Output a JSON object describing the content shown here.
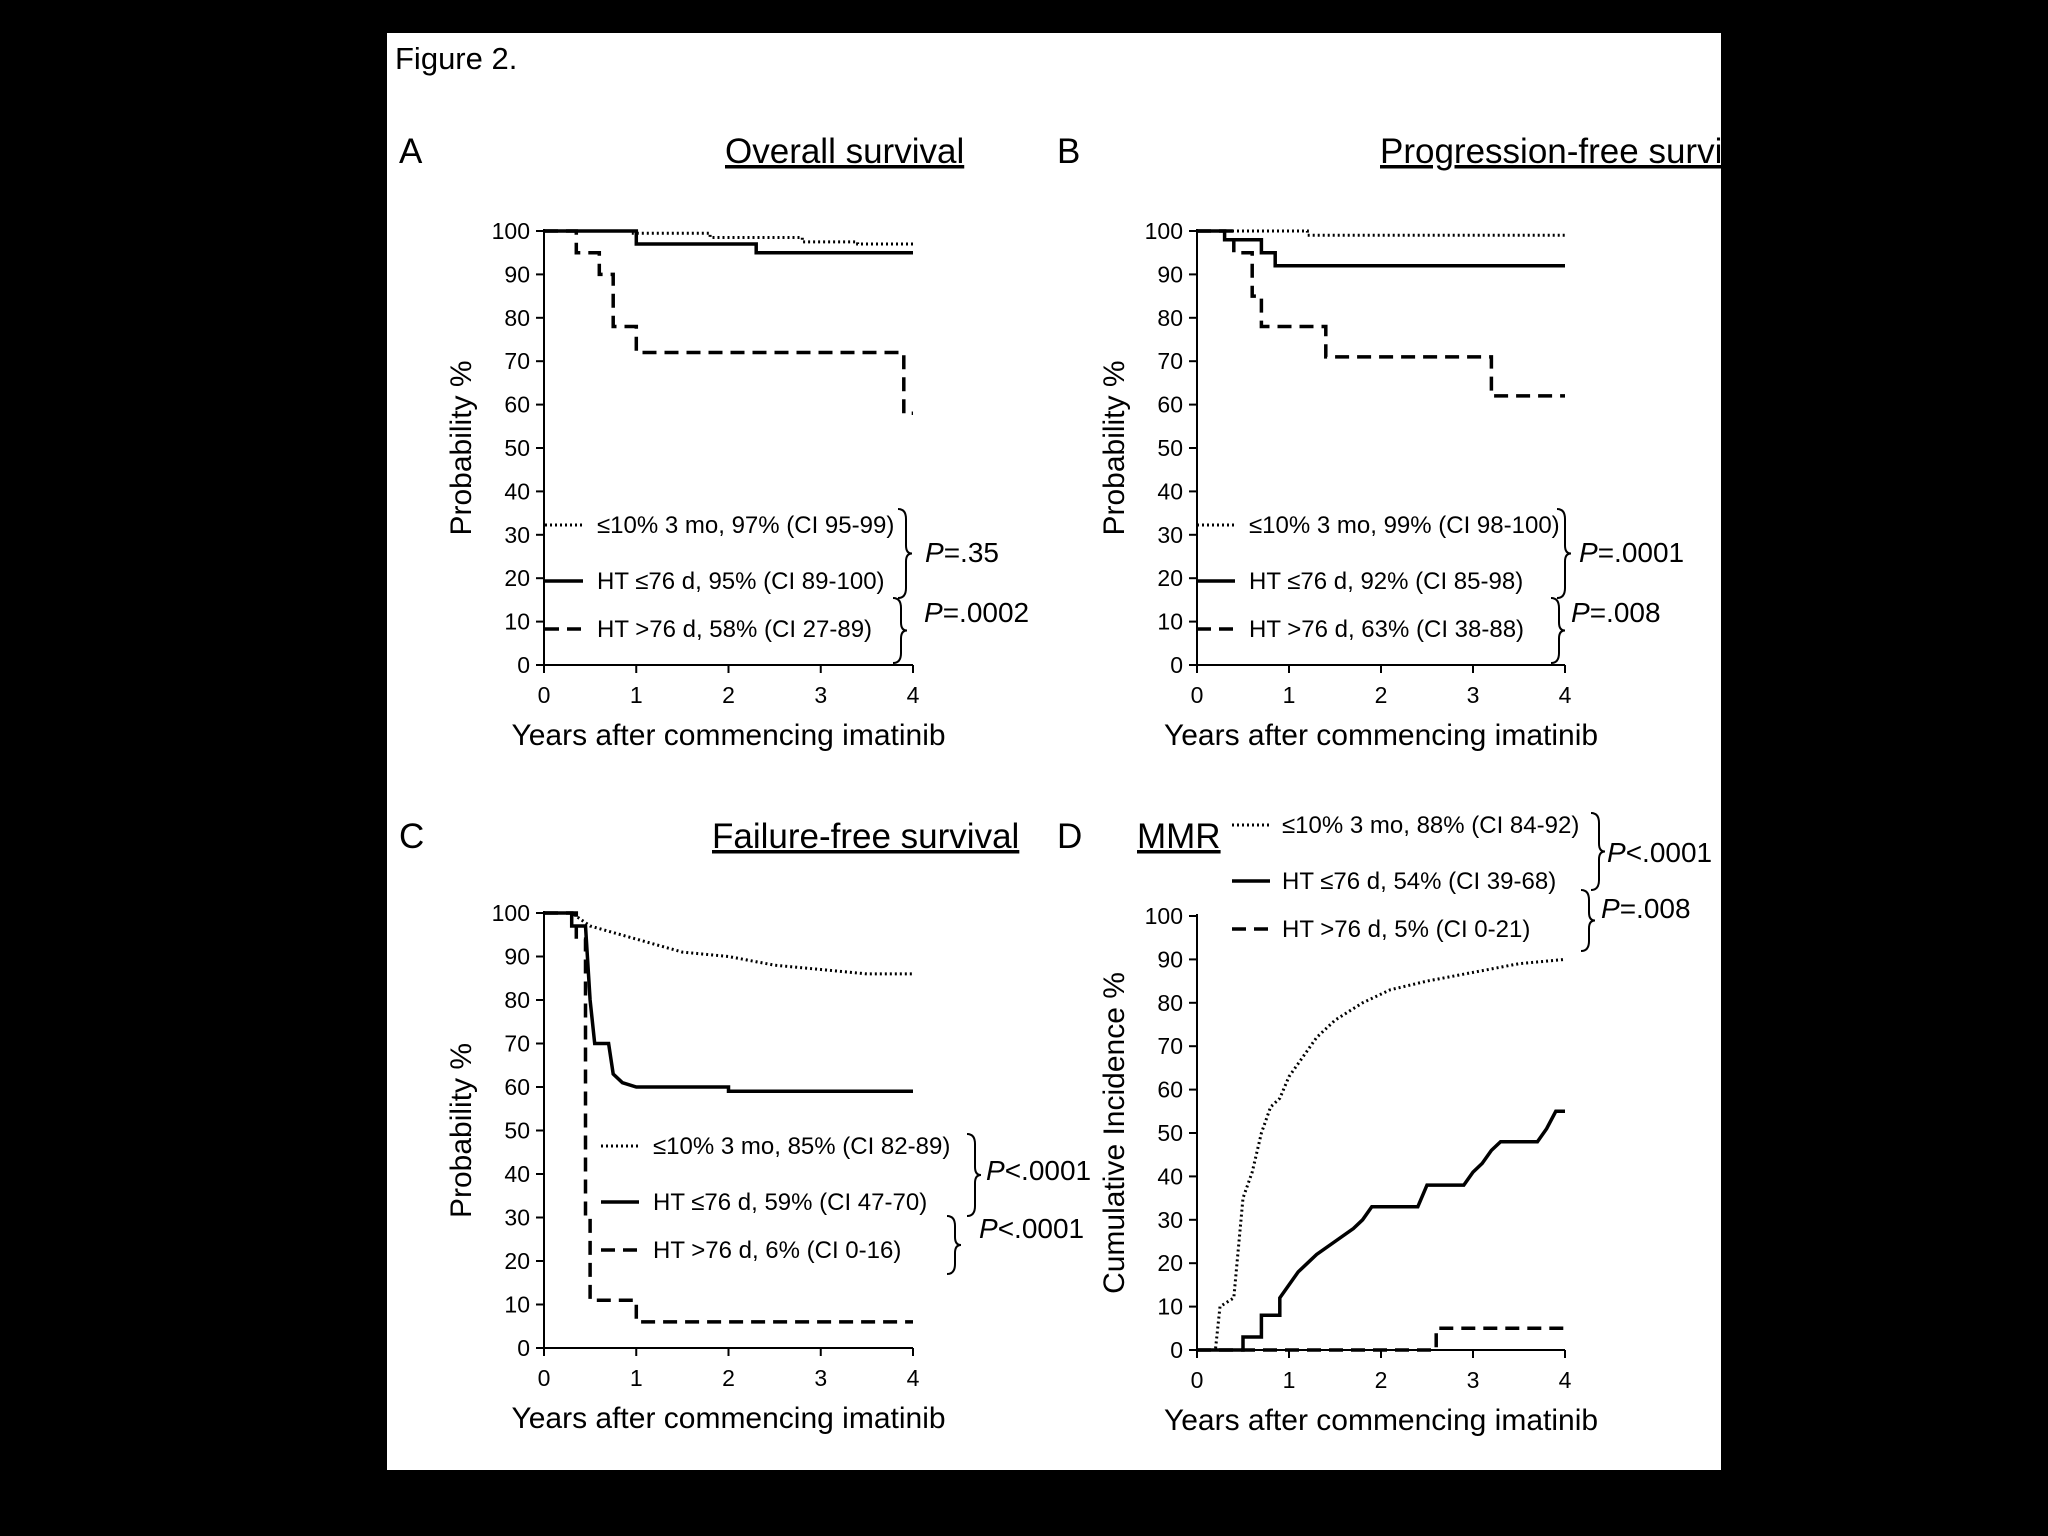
{
  "figure_title": "Figure 2.",
  "chart_data": [
    {
      "panel": "A",
      "type": "line",
      "title": "Overall survival",
      "xlabel": "Years after commencing imatinib",
      "ylabel": "Probability %",
      "xlim": [
        0,
        4
      ],
      "ylim": [
        0,
        100
      ],
      "xticks": [
        "0",
        "1",
        "2",
        "3",
        "4"
      ],
      "yticks": [
        "0",
        "10",
        "20",
        "30",
        "40",
        "50",
        "60",
        "70",
        "80",
        "90",
        "100"
      ],
      "series": [
        {
          "name": "≤10% 3 mo, 97% (CI 95-99)",
          "style": "dotted",
          "points": [
            [
              0,
              100
            ],
            [
              0.95,
              100
            ],
            [
              0.95,
              99.5
            ],
            [
              1.8,
              99.5
            ],
            [
              1.8,
              98.5
            ],
            [
              2.8,
              98.5
            ],
            [
              2.8,
              97.5
            ],
            [
              3.4,
              97.5
            ],
            [
              3.4,
              97
            ],
            [
              4,
              97
            ]
          ]
        },
        {
          "name": "HT ≤76 d, 95% (CI 89-100)",
          "style": "solid",
          "points": [
            [
              0,
              100
            ],
            [
              1.0,
              100
            ],
            [
              1.0,
              97
            ],
            [
              2.3,
              97
            ],
            [
              2.3,
              95
            ],
            [
              4,
              95
            ]
          ]
        },
        {
          "name": "HT >76 d, 58% (CI 27-89)",
          "style": "dashed",
          "points": [
            [
              0,
              100
            ],
            [
              0.35,
              100
            ],
            [
              0.35,
              95
            ],
            [
              0.6,
              95
            ],
            [
              0.6,
              90
            ],
            [
              0.75,
              90
            ],
            [
              0.75,
              78
            ],
            [
              1.0,
              78
            ],
            [
              1.0,
              72
            ],
            [
              3.9,
              72
            ],
            [
              3.9,
              58
            ],
            [
              4,
              58
            ]
          ]
        }
      ],
      "pvalues": [
        {
          "prefix": "P",
          "value": "=.35"
        },
        {
          "prefix": "P",
          "value": "=.0002"
        }
      ]
    },
    {
      "panel": "B",
      "type": "line",
      "title": "Progression-free survival",
      "xlabel": "Years after commencing imatinib",
      "ylabel": "Probability %",
      "xlim": [
        0,
        4
      ],
      "ylim": [
        0,
        100
      ],
      "xticks": [
        "0",
        "1",
        "2",
        "3",
        "4"
      ],
      "yticks": [
        "0",
        "10",
        "20",
        "30",
        "40",
        "50",
        "60",
        "70",
        "80",
        "90",
        "100"
      ],
      "series": [
        {
          "name": "≤10% 3 mo, 99% (CI 98-100)",
          "style": "dotted",
          "points": [
            [
              0,
              100
            ],
            [
              1.2,
              100
            ],
            [
              1.2,
              99
            ],
            [
              4,
              99
            ]
          ]
        },
        {
          "name": "HT ≤76 d, 92% (CI 85-98)",
          "style": "solid",
          "points": [
            [
              0,
              100
            ],
            [
              0.3,
              100
            ],
            [
              0.3,
              98
            ],
            [
              0.7,
              98
            ],
            [
              0.7,
              95
            ],
            [
              0.85,
              95
            ],
            [
              0.85,
              92
            ],
            [
              4,
              92
            ]
          ]
        },
        {
          "name": "HT >76 d, 63% (CI 38-88)",
          "style": "dashed",
          "points": [
            [
              0,
              100
            ],
            [
              0.4,
              100
            ],
            [
              0.4,
              95
            ],
            [
              0.6,
              95
            ],
            [
              0.6,
              85
            ],
            [
              0.7,
              85
            ],
            [
              0.7,
              78
            ],
            [
              1.4,
              78
            ],
            [
              1.4,
              71
            ],
            [
              3.2,
              71
            ],
            [
              3.2,
              62
            ],
            [
              4,
              62
            ]
          ]
        }
      ],
      "pvalues": [
        {
          "prefix": "P",
          "value": "=.0001"
        },
        {
          "prefix": "P",
          "value": "=.008"
        }
      ]
    },
    {
      "panel": "C",
      "type": "line",
      "title": "Failure-free survival",
      "xlabel": "Years after commencing imatinib",
      "ylabel": "Probability %",
      "xlim": [
        0,
        4
      ],
      "ylim": [
        0,
        100
      ],
      "xticks": [
        "0",
        "1",
        "2",
        "3",
        "4"
      ],
      "yticks": [
        "0",
        "10",
        "20",
        "30",
        "40",
        "50",
        "60",
        "70",
        "80",
        "90",
        "100"
      ],
      "series": [
        {
          "name": "≤10% 3 mo, 85% (CI 82-89)",
          "style": "dotted",
          "points": [
            [
              0,
              100
            ],
            [
              0.3,
              100
            ],
            [
              0.5,
              97
            ],
            [
              1.0,
              94
            ],
            [
              1.5,
              91
            ],
            [
              2.0,
              90
            ],
            [
              2.5,
              88
            ],
            [
              3.0,
              87
            ],
            [
              3.5,
              86
            ],
            [
              4,
              86
            ]
          ]
        },
        {
          "name": "HT ≤76 d, 59% (CI 47-70)",
          "style": "solid",
          "points": [
            [
              0,
              100
            ],
            [
              0.3,
              100
            ],
            [
              0.3,
              97
            ],
            [
              0.45,
              97
            ],
            [
              0.5,
              80
            ],
            [
              0.55,
              70
            ],
            [
              0.7,
              70
            ],
            [
              0.75,
              63
            ],
            [
              0.85,
              61
            ],
            [
              1.0,
              60
            ],
            [
              2.0,
              60
            ],
            [
              2.0,
              59
            ],
            [
              4,
              59
            ]
          ]
        },
        {
          "name": "HT >76 d,  6% (CI 0-16)",
          "style": "dashed",
          "points": [
            [
              0,
              100
            ],
            [
              0.35,
              100
            ],
            [
              0.35,
              94
            ],
            [
              0.45,
              94
            ],
            [
              0.45,
              30
            ],
            [
              0.5,
              30
            ],
            [
              0.5,
              11
            ],
            [
              1.0,
              11
            ],
            [
              1.0,
              6
            ],
            [
              4,
              6
            ]
          ]
        }
      ],
      "pvalues": [
        {
          "prefix": "P",
          "value": "<.0001"
        },
        {
          "prefix": "P",
          "value": "<.0001"
        }
      ]
    },
    {
      "panel": "D",
      "type": "line",
      "title": "MMR",
      "xlabel": "Years after commencing imatinib",
      "ylabel": "Cumulative Incidence %",
      "xlim": [
        0,
        4
      ],
      "ylim": [
        0,
        100
      ],
      "xticks": [
        "0",
        "1",
        "2",
        "3",
        "4"
      ],
      "yticks": [
        "0",
        "10",
        "20",
        "30",
        "40",
        "50",
        "60",
        "70",
        "80",
        "90",
        "100"
      ],
      "series": [
        {
          "name": "≤10% 3 mo, 88% (CI 84-92)",
          "style": "dotted",
          "points": [
            [
              0,
              0
            ],
            [
              0.2,
              0
            ],
            [
              0.25,
              10
            ],
            [
              0.4,
              12
            ],
            [
              0.5,
              35
            ],
            [
              0.6,
              41
            ],
            [
              0.7,
              50
            ],
            [
              0.8,
              56
            ],
            [
              0.9,
              58
            ],
            [
              1.0,
              63
            ],
            [
              1.1,
              66
            ],
            [
              1.3,
              72
            ],
            [
              1.5,
              76
            ],
            [
              1.8,
              80
            ],
            [
              2.1,
              83
            ],
            [
              2.5,
              85
            ],
            [
              3.0,
              87
            ],
            [
              3.5,
              89
            ],
            [
              4,
              90
            ]
          ]
        },
        {
          "name": "HT ≤76 d, 54% (CI 39-68)",
          "style": "solid",
          "points": [
            [
              0,
              0
            ],
            [
              0.5,
              0
            ],
            [
              0.5,
              3
            ],
            [
              0.7,
              3
            ],
            [
              0.7,
              8
            ],
            [
              0.9,
              8
            ],
            [
              0.9,
              12
            ],
            [
              1.0,
              15
            ],
            [
              1.1,
              18
            ],
            [
              1.2,
              20
            ],
            [
              1.3,
              22
            ],
            [
              1.5,
              25
            ],
            [
              1.7,
              28
            ],
            [
              1.8,
              30
            ],
            [
              1.9,
              33
            ],
            [
              2.4,
              33
            ],
            [
              2.5,
              38
            ],
            [
              2.9,
              38
            ],
            [
              3.0,
              41
            ],
            [
              3.1,
              43
            ],
            [
              3.2,
              46
            ],
            [
              3.3,
              48
            ],
            [
              3.7,
              48
            ],
            [
              3.8,
              51
            ],
            [
              3.9,
              55
            ],
            [
              4,
              55
            ]
          ]
        },
        {
          "name": "HT >76 d,  5% (CI 0-21)",
          "style": "dashed",
          "points": [
            [
              0,
              0
            ],
            [
              2.6,
              0
            ],
            [
              2.6,
              5
            ],
            [
              4,
              5
            ]
          ]
        }
      ],
      "pvalues": [
        {
          "prefix": "P",
          "value": "<.0001"
        },
        {
          "prefix": "P",
          "value": "=.008"
        }
      ]
    }
  ]
}
